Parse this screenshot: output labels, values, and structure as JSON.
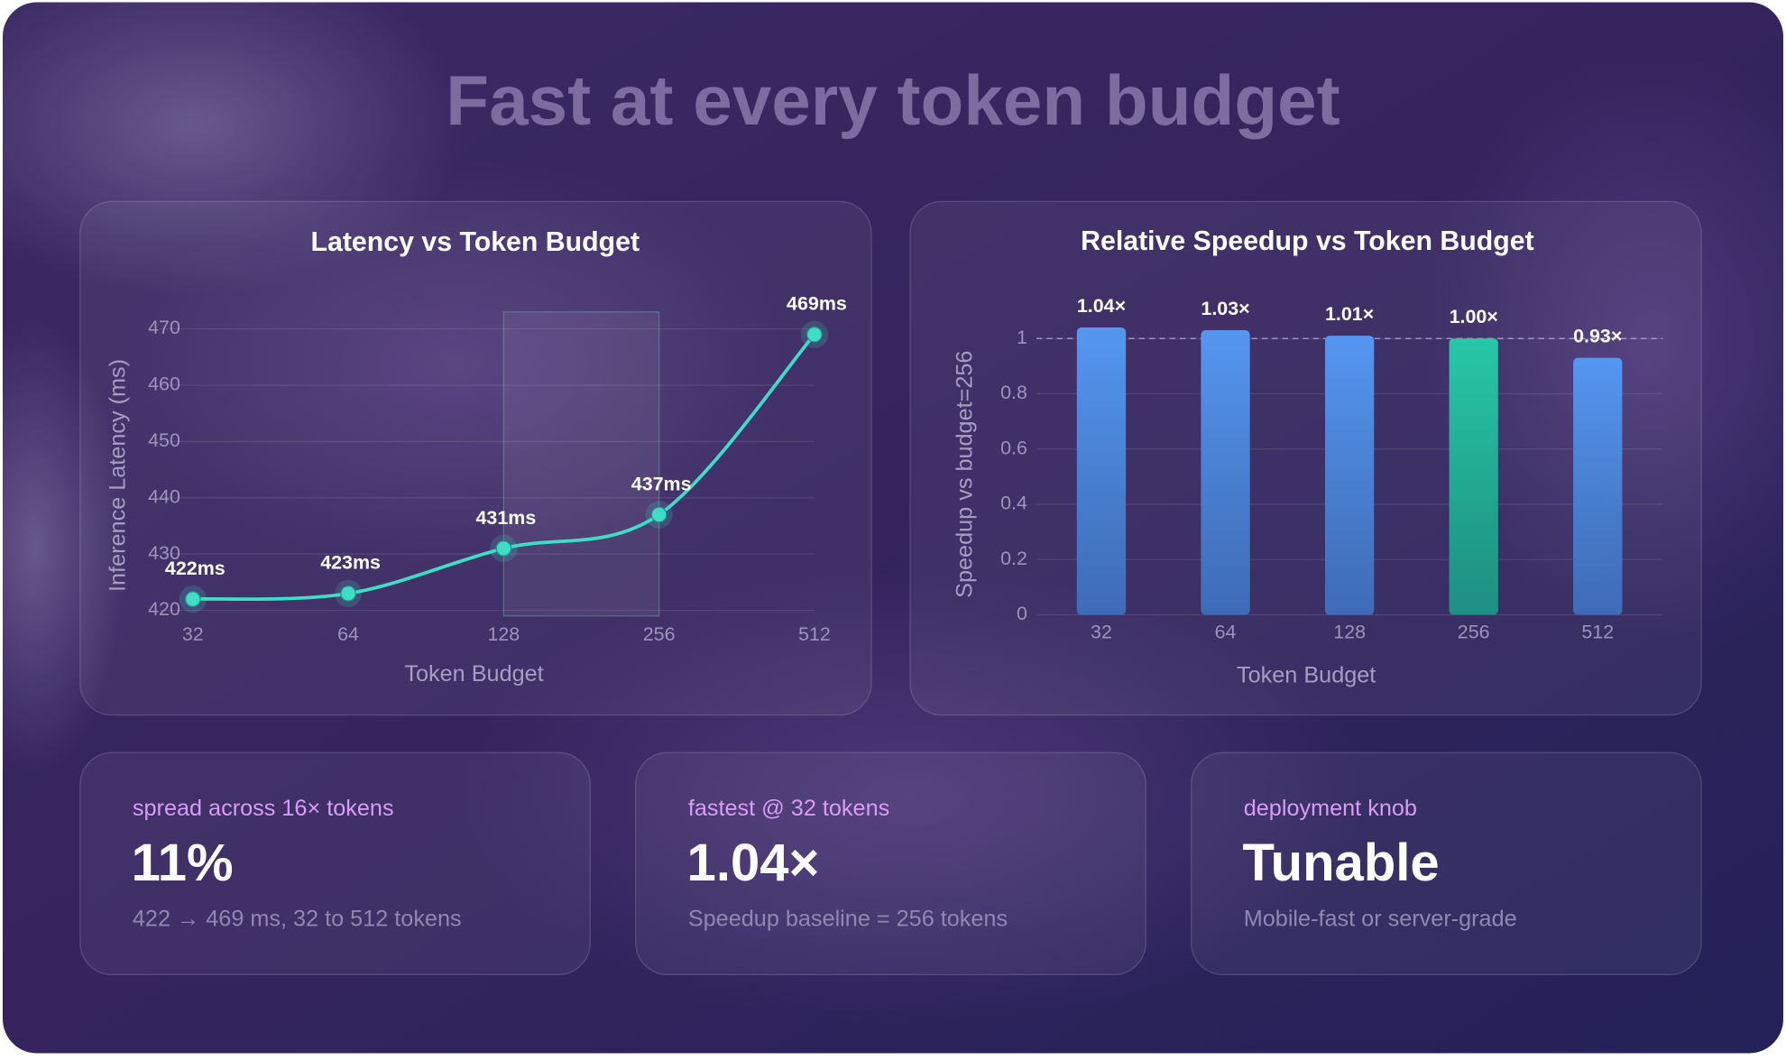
{
  "title": "Fast at every token budget",
  "chart_data": [
    {
      "type": "line",
      "title": "Latency vs Token Budget",
      "categories": [
        "32",
        "64",
        "128",
        "256",
        "512"
      ],
      "values": [
        422,
        423,
        431,
        437,
        469
      ],
      "value_labels": [
        "422ms",
        "423ms",
        "431ms",
        "437ms",
        "469ms"
      ],
      "color": "#3fdcc6",
      "x_label": "Token Budget",
      "y_label": "Inference Latency (ms)",
      "ylim": [
        419,
        473
      ],
      "yticks": [
        420,
        430,
        440,
        450,
        460,
        470
      ],
      "grid": true,
      "highlight": [
        "128",
        "256"
      ]
    },
    {
      "type": "bar",
      "title": "Relative Speedup vs Token Budget",
      "categories": [
        "32",
        "64",
        "128",
        "256",
        "512"
      ],
      "values": [
        1.04,
        1.03,
        1.01,
        1.0,
        0.93
      ],
      "value_labels": [
        "1.04×",
        "1.03×",
        "1.01×",
        "1.00×",
        "0.93×"
      ],
      "colors": [
        "#5596f2",
        "#5596f2",
        "#5596f2",
        "#27c7a8",
        "#5596f2"
      ],
      "x_label": "Token Budget",
      "y_label": "Speedup vs budget=256",
      "ylim": [
        0,
        1.1
      ],
      "yticks": [
        0,
        0.2,
        0.4,
        0.6,
        0.8,
        1
      ],
      "grid": true,
      "reference_line": 1
    }
  ],
  "cards": [
    {
      "label": "spread across 16× tokens",
      "value": "11%",
      "note": "422 → 469 ms, 32 to 512 tokens"
    },
    {
      "label": "fastest @ 32 tokens",
      "value": "1.04×",
      "note": "Speedup baseline = 256 tokens"
    },
    {
      "label": "deployment knob",
      "value": "Tunable",
      "note": "Mobile-fast or server-grade"
    }
  ]
}
